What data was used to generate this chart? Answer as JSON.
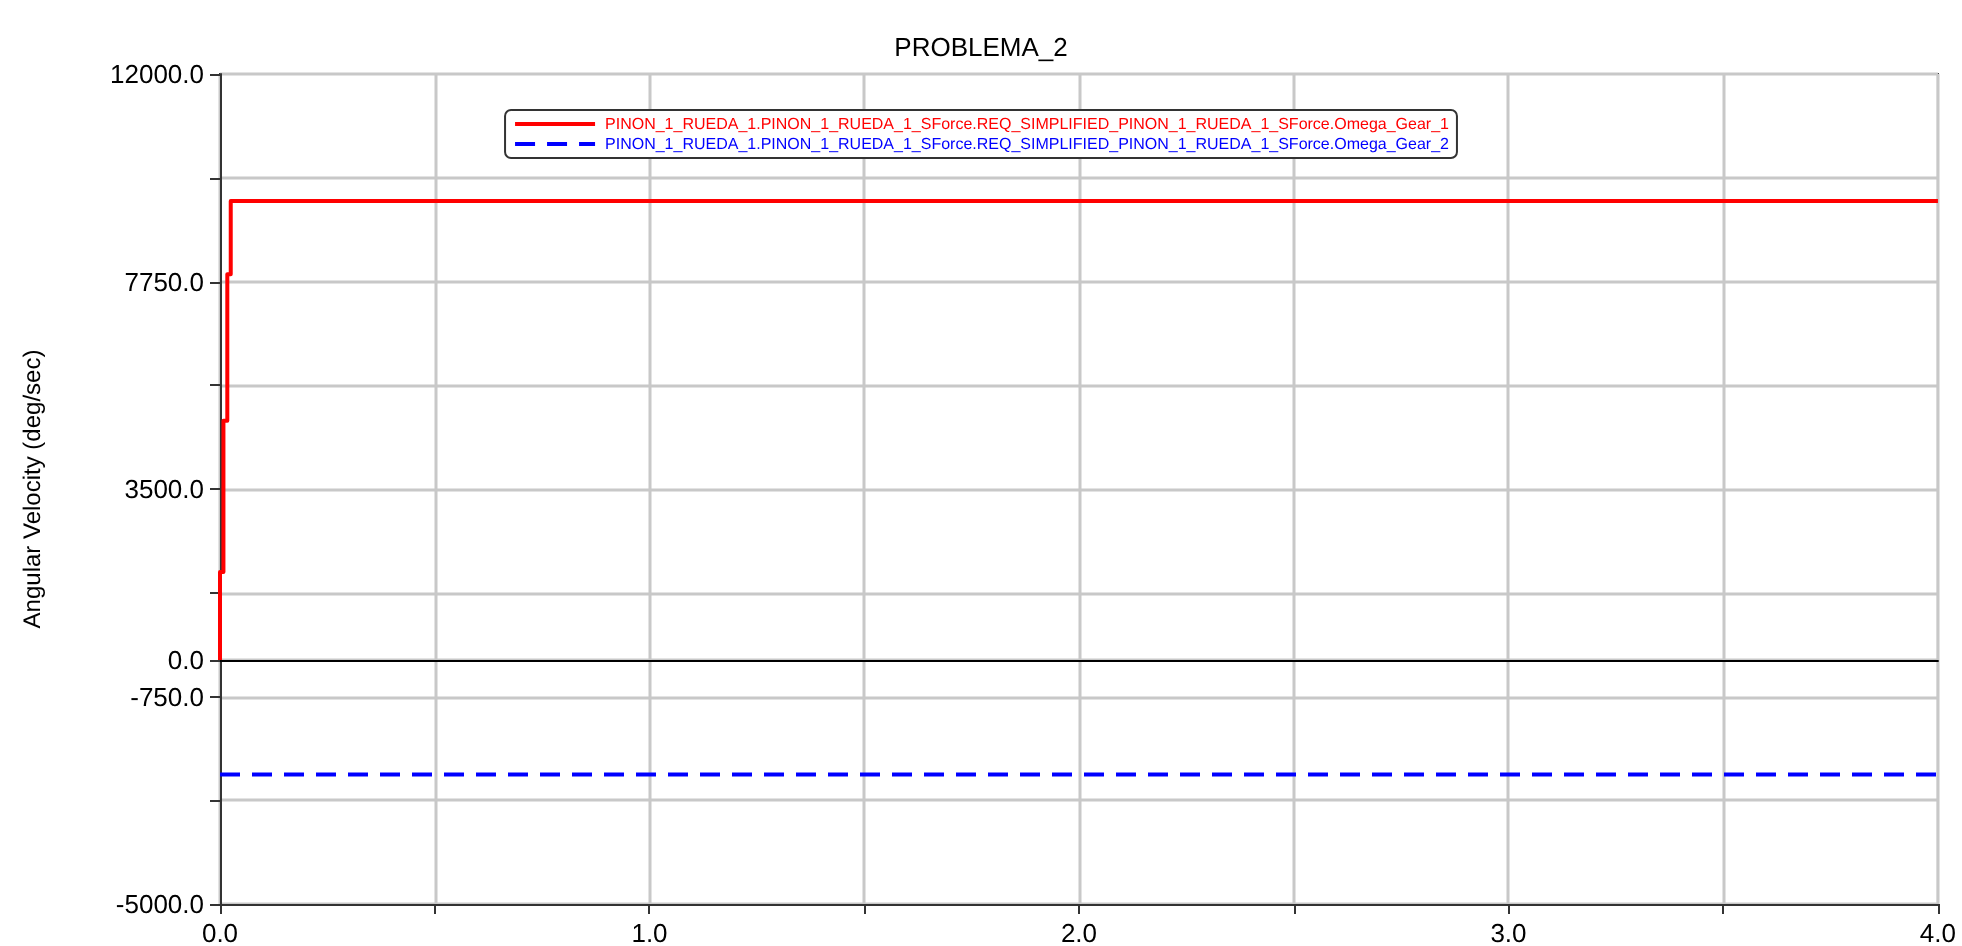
{
  "chart_data": {
    "type": "line",
    "title": "PROBLEMA_2",
    "ylabel": "Angular Velocity (deg/sec)",
    "xlim": [
      0,
      4
    ],
    "xticks": [
      {
        "value": 0,
        "label": "0.0"
      },
      {
        "value": 0.5,
        "label": null
      },
      {
        "value": 1,
        "label": "1.0"
      },
      {
        "value": 1.5,
        "label": null
      },
      {
        "value": 2,
        "label": "2.0"
      },
      {
        "value": 2.5,
        "label": null
      },
      {
        "value": 3,
        "label": "3.0"
      },
      {
        "value": 3.5,
        "label": null
      },
      {
        "value": 4,
        "label": "4.0"
      }
    ],
    "ylim": [
      -5000,
      12000
    ],
    "yticks": [
      {
        "value": -5000,
        "label": "-5000.0"
      },
      {
        "value": -2875,
        "label": null
      },
      {
        "value": -750,
        "label": "-750.0"
      },
      {
        "value": 0,
        "label": "0.0"
      },
      {
        "value": 1375,
        "label": null
      },
      {
        "value": 3500,
        "label": "3500.0"
      },
      {
        "value": 5625,
        "label": null
      },
      {
        "value": 7750,
        "label": "7750.0"
      },
      {
        "value": 9875,
        "label": null
      },
      {
        "value": 12000,
        "label": "12000.0"
      }
    ],
    "grid": true,
    "legend": "top",
    "marker": "none",
    "series": [
      {
        "name": "PINON_1_RUEDA_1.PINON_1_RUEDA_1_SForce.REQ_SIMPLIFIED_PINON_1_RUEDA_1_SForce.Omega_Gear_1",
        "color": "#ff0000",
        "line_style": "solid",
        "x": [
          0,
          0,
          0.008,
          0.008,
          0.017,
          0.017,
          0.025,
          0.025,
          4
        ],
        "values": [
          0,
          1800,
          1800,
          4900,
          4900,
          7900,
          7900,
          9400,
          9400
        ]
      },
      {
        "name": "PINON_1_RUEDA_1.PINON_1_RUEDA_1_SForce.REQ_SIMPLIFIED_PINON_1_RUEDA_1_SForce.Omega_Gear_2",
        "color": "#0000ff",
        "line_style": "dashed",
        "x": [
          0,
          4
        ],
        "values": [
          -2350,
          -2350
        ]
      }
    ]
  }
}
